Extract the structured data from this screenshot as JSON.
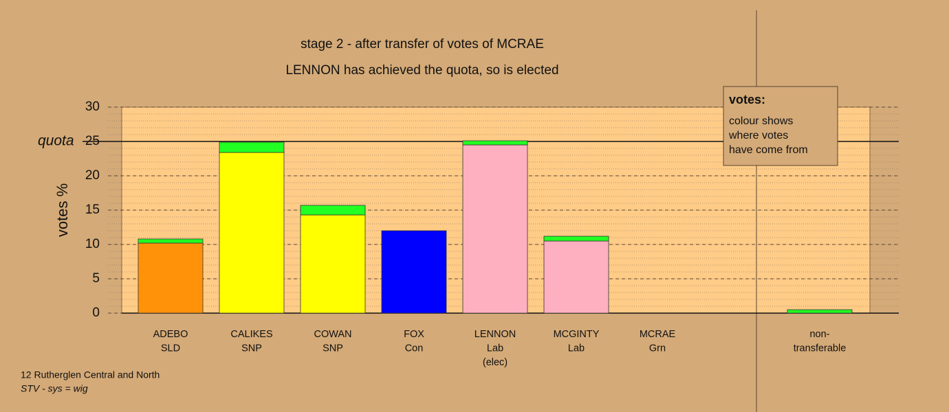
{
  "chart_data": {
    "type": "stacked_bar",
    "title": "stage 2 - after transfer of votes of MCRAE",
    "subtitle": "LENNON has achieved the quota, so is elected",
    "ylabel": "votes %",
    "categories": [
      [
        "ADEBO",
        "SLD"
      ],
      [
        "CALIKES",
        "SNP"
      ],
      [
        "COWAN",
        "SNP"
      ],
      [
        "FOX",
        "Con"
      ],
      [
        "LENNON",
        "Lab",
        "(elec)"
      ],
      [
        "MCGINTY",
        "Lab"
      ],
      [
        "MCRAE",
        "Grn"
      ],
      [
        "non-",
        "transferable"
      ]
    ],
    "series": [
      {
        "colors": [
          "#ff9208",
          "#ffff00",
          "#ffff00",
          "#0000ff",
          "#ffb0c0",
          "#ffb0c0",
          "#00aa00",
          "#22ff22"
        ],
        "values": [
          10.2,
          23.4,
          14.3,
          12.0,
          24.5,
          10.5,
          0,
          0
        ]
      },
      {
        "color": "#22ff22",
        "values": [
          0.6,
          1.5,
          1.4,
          0,
          0.6,
          0.7,
          0,
          0.5
        ]
      }
    ],
    "ylim": [
      0,
      30
    ],
    "yticks": [
      0,
      5,
      10,
      15,
      20,
      25,
      30
    ],
    "minor_grid_step": 1,
    "grid": true,
    "quota": {
      "value": 25,
      "label": "quota"
    },
    "legend": {
      "title": "votes:",
      "lines": [
        "colour shows",
        "where votes",
        "have come from"
      ]
    },
    "footer": [
      "12 Rutherglen Central and North",
      "STV - sys = wig"
    ]
  }
}
